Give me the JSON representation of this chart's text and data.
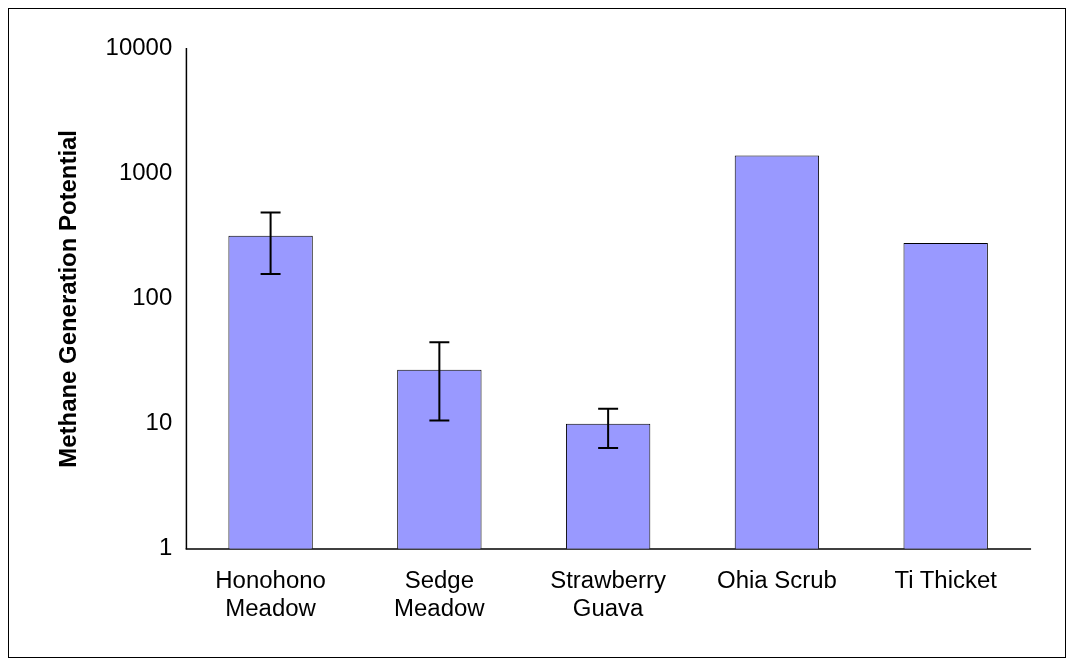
{
  "chart_data": {
    "type": "bar",
    "ylabel": "Methane Generation Potential",
    "categories": [
      "Honohono Meadow",
      "Sedge Meadow",
      "Strawberry Guava",
      "Ohia Scrub",
      "Ti Thicket"
    ],
    "values": [
      320,
      27,
      10,
      1400,
      280
    ],
    "errors": [
      [
        158,
        490
      ],
      [
        10.6,
        45
      ],
      [
        6.4,
        13.2
      ],
      null,
      null
    ],
    "color": "#9999ff",
    "log": "y",
    "ylim": [
      1,
      10000
    ],
    "yticks": [
      1,
      10,
      100,
      1000,
      10000
    ],
    "grid": false,
    "legend": false
  }
}
